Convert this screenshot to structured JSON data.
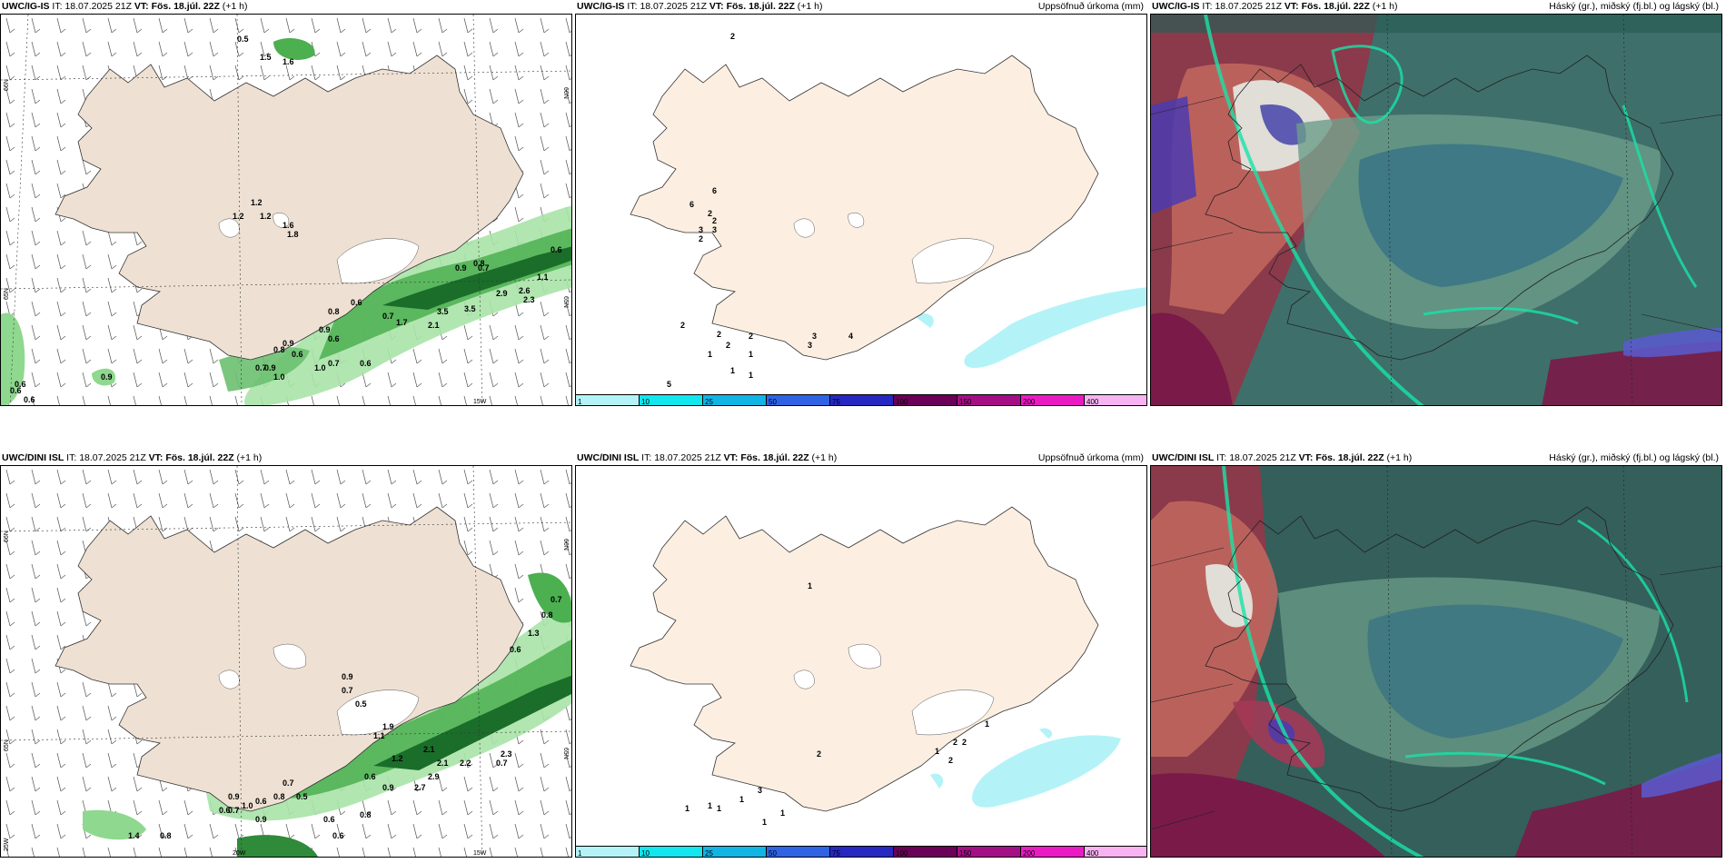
{
  "panels": {
    "p1": {
      "model": "UWC/IG-IS",
      "it_label": "IT:",
      "it": "18.07.2025 21Z",
      "vt_label": "VT:",
      "vt": "Fös. 18.júl. 22Z",
      "lead": "(+1 h)",
      "right": ""
    },
    "p2": {
      "model": "UWC/IG-IS",
      "it_label": "IT:",
      "it": "18.07.2025 21Z",
      "vt_label": "VT:",
      "vt": "Fös. 18.júl. 22Z",
      "lead": "(+1 h)",
      "right": "Uppsöfnuð úrkoma (mm)"
    },
    "p3": {
      "model": "UWC/IG-IS",
      "it_label": "IT:",
      "it": "18.07.2025 21Z",
      "vt_label": "VT:",
      "vt": "Fös. 18.júl. 22Z",
      "lead": "(+1 h)",
      "right": "Háský (gr.), miðský (fj.bl.) og lágský (bl.)"
    },
    "p4": {
      "model": "UWC/DINI ISL",
      "it_label": "IT:",
      "it": "18.07.2025 21Z",
      "vt_label": "VT:",
      "vt": "Fös. 18.júl. 22Z",
      "lead": "(+1 h)",
      "right": ""
    },
    "p5": {
      "model": "UWC/DINI ISL",
      "it_label": "IT:",
      "it": "18.07.2025 21Z",
      "vt_label": "VT:",
      "vt": "Fös. 18.júl. 22Z",
      "lead": "(+1 h)",
      "right": "Uppsöfnuð úrkoma (mm)"
    },
    "p6": {
      "model": "UWC/DINI ISL",
      "it_label": "IT:",
      "it": "18.07.2025 21Z",
      "vt_label": "VT:",
      "vt": "Fös. 18.júl. 22Z",
      "lead": "(+1 h)",
      "right": "Háský (gr.), miðský (fj.bl.) og lágský (bl.)"
    }
  },
  "axis": {
    "lat66": "66N",
    "lat65": "65N",
    "lon15": "15W",
    "lon20": "20W",
    "lon25": "25W"
  },
  "colorbar": {
    "labels": [
      "1",
      "10",
      "25",
      "50",
      "75",
      "100",
      "150",
      "200",
      "400"
    ],
    "colors": [
      "#b3f3f7",
      "#12e6ee",
      "#10b5e6",
      "#2f63e4",
      "#2727c2",
      "#6a0057",
      "#a40f86",
      "#ea1bc4",
      "#f7b3f1"
    ]
  },
  "wind_values_top": [
    "0.5",
    "1.5",
    "1.6",
    "1.2",
    "1.2",
    "1.2",
    "1.6",
    "1.8",
    "0.6",
    "0.8",
    "0.9",
    "0.7",
    "1.1",
    "2.9",
    "2.6",
    "2.3",
    "3.5",
    "3.5",
    "2.1",
    "1.7",
    "0.7",
    "0.6",
    "0.8",
    "0.9",
    "0.6",
    "0.7",
    "0.8",
    "0.9",
    "1.0",
    "0.6",
    "1.0",
    "0.6",
    "0.7",
    "0.9",
    "0.6",
    "0.6",
    "0.6",
    "0.9"
  ],
  "precip_values_top": [
    "2",
    "6",
    "2",
    "2",
    "3",
    "3",
    "2",
    "6",
    "2",
    "2",
    "1",
    "1",
    "3",
    "4",
    "3",
    "2",
    "2",
    "1",
    "1",
    "5"
  ],
  "wind_values_bottom": [
    "0.7",
    "0.8",
    "1.3",
    "0.6",
    "0.9",
    "0.7",
    "0.5",
    "1.9",
    "1.2",
    "2.1",
    "1.1",
    "2.3",
    "0.7",
    "2.2",
    "2.1",
    "2.9",
    "2.7",
    "0.9",
    "0.6",
    "0.7",
    "0.5",
    "0.6",
    "0.9",
    "1.0",
    "0.7",
    "0.6",
    "0.8",
    "0.9",
    "0.6",
    "0.8",
    "1.4",
    "0.8",
    "0.6"
  ],
  "precip_values_bottom": [
    "1",
    "1",
    "2",
    "2",
    "1",
    "2",
    "2",
    "3",
    "1",
    "1",
    "1",
    "1",
    "1",
    "1"
  ]
}
